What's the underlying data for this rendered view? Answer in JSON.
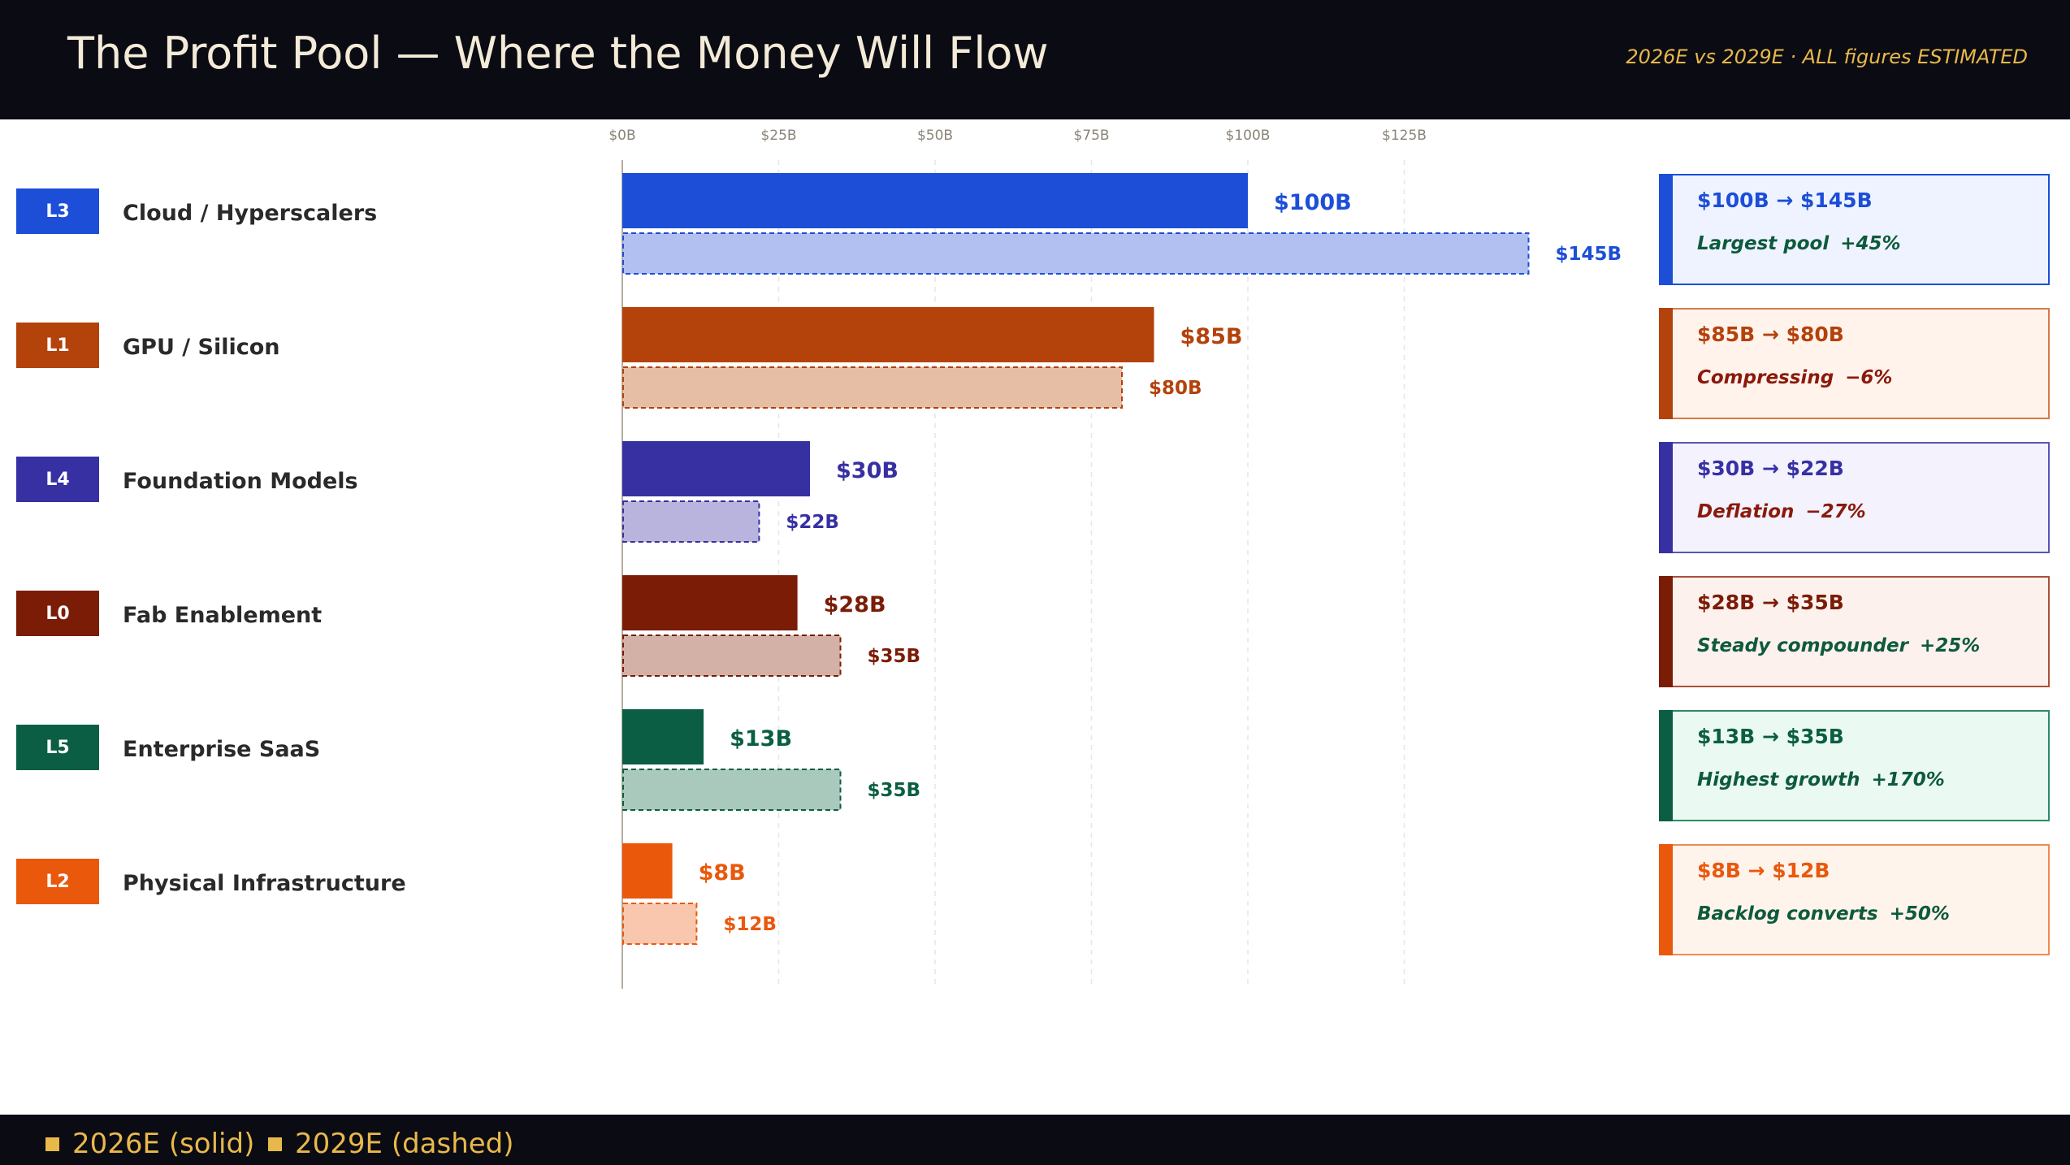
{
  "header": {
    "title": "The Profit Pool — Where the Money Will Flow",
    "subtitle": "2026E vs 2029E · ALL figures ESTIMATED"
  },
  "legend": {
    "solid_label": "2026E (solid)",
    "dashed_label": "2029E (dashed)",
    "color": "#e8b84a"
  },
  "chart_data": {
    "type": "bar",
    "orientation": "horizontal",
    "x_ticks": [
      "$0B",
      "$25B",
      "$50B",
      "$75B",
      "$100B",
      "$125B"
    ],
    "xlim": [
      0,
      145
    ],
    "grid": true,
    "categories": [
      "Cloud / Hyperscalers",
      "GPU / Silicon",
      "Foundation Models",
      "Fab Enablement",
      "Enterprise SaaS",
      "Physical Infrastructure"
    ],
    "series": [
      {
        "name": "2026E",
        "values": [
          100,
          85,
          30,
          28,
          13,
          8
        ],
        "labels": [
          "$100B",
          "$85B",
          "$30B",
          "$28B",
          "$13B",
          "$8B"
        ],
        "style": "solid"
      },
      {
        "name": "2029E",
        "values": [
          145,
          80,
          22,
          35,
          35,
          12
        ],
        "labels": [
          "$145B",
          "$80B",
          "$22B",
          "$35B",
          "$35B",
          "$12B"
        ],
        "style": "dashed"
      }
    ]
  },
  "rows": [
    {
      "badge": "L3",
      "name": "Cloud / Hyperscalers",
      "color": "#1c4ed8",
      "light": "#b1c0f1",
      "card_bg": "#eef3ff",
      "card_border": "#1c4ed8",
      "range": "$100B → $145B",
      "note": "Largest pool",
      "change": "+45%",
      "note_color": "#0e5a3c"
    },
    {
      "badge": "L1",
      "name": "GPU / Silicon",
      "color": "#b3420b",
      "light": "#e6bea6",
      "card_bg": "#fff3ec",
      "card_border": "#d67a47",
      "range": "$85B → $80B",
      "note": "Compressing",
      "change": "−6%",
      "note_color": "#8a1a0c"
    },
    {
      "badge": "L4",
      "name": "Foundation Models",
      "color": "#3730a3",
      "light": "#b8b4de",
      "card_bg": "#f3f2fd",
      "card_border": "#5a54b8",
      "range": "$30B → $22B",
      "note": "Deflation",
      "change": "−27%",
      "note_color": "#8a1a0c"
    },
    {
      "badge": "L0",
      "name": "Fab Enablement",
      "color": "#7b1c07",
      "light": "#d4b1a6",
      "card_bg": "#fdf1ee",
      "card_border": "#a9503a",
      "range": "$28B → $35B",
      "note": "Steady compounder",
      "change": "+25%",
      "note_color": "#0e5a3c"
    },
    {
      "badge": "L5",
      "name": "Enterprise SaaS",
      "color": "#0b5e43",
      "light": "#a9c9bd",
      "card_bg": "#eaf9f2",
      "card_border": "#2f8a66",
      "range": "$13B → $35B",
      "note": "Highest growth",
      "change": "+170%",
      "note_color": "#0e5a3c"
    },
    {
      "badge": "L2",
      "name": "Physical Infrastructure",
      "color": "#ea580c",
      "light": "#f8c7ad",
      "card_bg": "#fff4ec",
      "card_border": "#f08a52",
      "range": "$8B → $12B",
      "note": "Backlog converts",
      "change": "+50%",
      "note_color": "#0e5a3c"
    }
  ]
}
